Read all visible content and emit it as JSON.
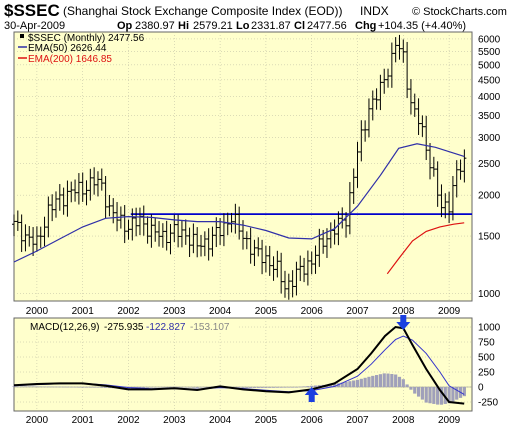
{
  "header": {
    "symbol": "$SSEC",
    "name": "(Shanghai Stock Exchange Composite Index (EOD))",
    "exchange": "INDX",
    "date": "30-Apr-2009",
    "op_label": "Op",
    "op_value": "2380.97",
    "hi_label": "Hi",
    "hi_value": "2579.21",
    "lo_label": "Lo",
    "lo_value": "2331.87",
    "cl_label": "Cl",
    "cl_value": "2477.56",
    "chg_label": "Chg",
    "chg_value": "+104.35 (+4.40%)",
    "source": "© StockCharts.com"
  },
  "colors": {
    "panel_bg": "#ffffcc",
    "price": "#000000",
    "ema50": "#2f2fa8",
    "ema200": "#dd1111",
    "support": "#0000cc",
    "macd": "#000000",
    "signal": "#3333cc",
    "histogram": "#a0a0ba",
    "arrow": "#1a3fe0",
    "grid": "#b8b8a0"
  },
  "legend": [
    {
      "label": "$SSEC (Monthly) 2477.56",
      "color": "#000000"
    },
    {
      "label": "EMA(50) 2626.44",
      "color": "#2f2fa8"
    },
    {
      "label": "EMA(200) 1646.85",
      "color": "#dd1111"
    }
  ],
  "macd_label": {
    "prefix": "MACD(12,26,9)",
    "v1": "-275.935",
    "v2": "-122.827",
    "v3": "-153.107"
  },
  "chart_data": [
    {
      "type": "line",
      "title": "$SSEC (Shanghai Stock Exchange Composite Index (EOD))",
      "scale": "log",
      "yticks": [
        1000,
        1500,
        2000,
        2500,
        3000,
        3500,
        4000,
        4500,
        5000,
        5500,
        6000
      ],
      "ylim": [
        950,
        6300
      ],
      "xlim": [
        1999.5,
        2009.5
      ],
      "xticks": [
        2000,
        2001,
        2002,
        2003,
        2004,
        2005,
        2006,
        2007,
        2008,
        2009
      ],
      "support_line": {
        "y": 1750,
        "x_start": 2002.05,
        "x_end": 2009.5
      },
      "series": [
        {
          "name": "$SSEC (Monthly)",
          "style": "ohlc",
          "x": [
            1999.5,
            1999.75,
            2000.0,
            2000.25,
            2000.5,
            2000.75,
            2001.0,
            2001.25,
            2001.42,
            2001.58,
            2001.75,
            2002.0,
            2002.25,
            2002.5,
            2002.75,
            2003.0,
            2003.25,
            2003.5,
            2003.75,
            2004.0,
            2004.25,
            2004.5,
            2004.75,
            2005.0,
            2005.25,
            2005.42,
            2005.58,
            2005.75,
            2006.0,
            2006.25,
            2006.5,
            2006.75,
            2007.0,
            2007.25,
            2007.5,
            2007.75,
            2007.83,
            2008.0,
            2008.17,
            2008.33,
            2008.5,
            2008.67,
            2008.83,
            2009.0,
            2009.17,
            2009.33
          ],
          "values": [
            1630,
            1500,
            1420,
            1800,
            1950,
            2050,
            2100,
            2200,
            2150,
            1800,
            1700,
            1600,
            1680,
            1550,
            1500,
            1550,
            1520,
            1400,
            1450,
            1560,
            1720,
            1500,
            1340,
            1280,
            1180,
            1050,
            1100,
            1180,
            1260,
            1450,
            1580,
            1700,
            2700,
            3700,
            4200,
            5250,
            5850,
            5250,
            3800,
            3400,
            2800,
            2300,
            1800,
            1900,
            2350,
            2480
          ]
        },
        {
          "name": "EMA(50)",
          "x": [
            1999.5,
            2000.0,
            2000.5,
            2001.0,
            2001.5,
            2002.0,
            2002.5,
            2003.0,
            2003.5,
            2004.0,
            2004.5,
            2005.0,
            2005.5,
            2006.0,
            2006.5,
            2007.0,
            2007.5,
            2007.9,
            2008.3,
            2008.7,
            2009.33
          ],
          "values": [
            1250,
            1350,
            1470,
            1600,
            1700,
            1720,
            1710,
            1680,
            1660,
            1660,
            1620,
            1560,
            1480,
            1470,
            1580,
            1850,
            2300,
            2780,
            2870,
            2800,
            2626
          ]
        },
        {
          "name": "EMA(200)",
          "x": [
            2007.65,
            2007.9,
            2008.2,
            2008.5,
            2008.8,
            2009.1,
            2009.33
          ],
          "values": [
            1150,
            1280,
            1450,
            1550,
            1600,
            1630,
            1647
          ]
        }
      ]
    },
    {
      "type": "line",
      "title": "MACD(12,26,9)",
      "ylim": [
        -400,
        1150
      ],
      "yticks": [
        -250,
        0,
        250,
        500,
        750,
        1000
      ],
      "xlim": [
        1999.5,
        2009.5
      ],
      "xticks": [
        2000,
        2001,
        2002,
        2003,
        2004,
        2005,
        2006,
        2007,
        2008,
        2009
      ],
      "series": [
        {
          "name": "MACD",
          "x": [
            1999.5,
            2000.0,
            2000.5,
            2001.0,
            2001.5,
            2002.0,
            2002.5,
            2003.0,
            2003.5,
            2004.0,
            2004.5,
            2005.0,
            2005.5,
            2006.0,
            2006.5,
            2007.0,
            2007.3,
            2007.6,
            2007.83,
            2008.0,
            2008.2,
            2008.5,
            2008.8,
            2009.0,
            2009.33
          ],
          "values": [
            30,
            50,
            60,
            60,
            20,
            -40,
            -40,
            -20,
            -50,
            10,
            -40,
            -70,
            -90,
            -40,
            60,
            300,
            560,
            850,
            1000,
            980,
            700,
            300,
            -50,
            -250,
            -276
          ]
        },
        {
          "name": "Signal",
          "x": [
            1999.5,
            2000.0,
            2000.5,
            2001.0,
            2001.5,
            2002.0,
            2002.5,
            2003.0,
            2003.5,
            2004.0,
            2004.5,
            2005.0,
            2005.5,
            2006.0,
            2006.5,
            2007.0,
            2007.3,
            2007.6,
            2007.83,
            2008.0,
            2008.2,
            2008.5,
            2008.8,
            2009.0,
            2009.33
          ],
          "values": [
            20,
            40,
            55,
            60,
            35,
            -10,
            -30,
            -25,
            -35,
            -10,
            -25,
            -55,
            -80,
            -60,
            10,
            180,
            380,
            620,
            790,
            850,
            780,
            560,
            250,
            20,
            -123
          ]
        },
        {
          "name": "Histogram",
          "style": "bar",
          "x": [
            2006.4,
            2006.6,
            2006.8,
            2007.0,
            2007.2,
            2007.4,
            2007.6,
            2007.8,
            2008.0,
            2008.2,
            2008.4,
            2008.6,
            2008.8,
            2009.0,
            2009.2,
            2009.33
          ],
          "values": [
            50,
            90,
            140,
            200,
            240,
            260,
            280,
            250,
            150,
            -60,
            -150,
            -250,
            -300,
            -280,
            -200,
            -153
          ]
        }
      ],
      "arrows": [
        {
          "x": 2006.0,
          "direction": "up",
          "color": "#1a3fe0"
        },
        {
          "x": 2008.0,
          "direction": "down",
          "color": "#1a3fe0"
        }
      ]
    }
  ]
}
